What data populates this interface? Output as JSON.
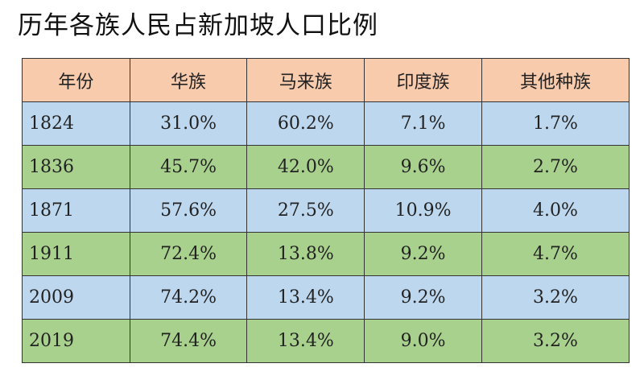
{
  "title": "历年各族人民占新加坡人口比例",
  "colors": {
    "header": "#f8cbad",
    "row_odd": "#bdd7ee",
    "row_even": "#a9d18e"
  },
  "chart_data": {
    "type": "table",
    "title": "历年各族人民占新加坡人口比例",
    "columns": [
      "年份",
      "华族",
      "马来族",
      "印度族",
      "其他种族"
    ],
    "rows": [
      [
        "1824",
        "31.0%",
        "60.2%",
        "7.1%",
        "1.7%"
      ],
      [
        "1836",
        "45.7%",
        "42.0%",
        "9.6%",
        "2.7%"
      ],
      [
        "1871",
        "57.6%",
        "27.5%",
        "10.9%",
        "4.0%"
      ],
      [
        "1911",
        "72.4%",
        "13.8%",
        "9.2%",
        "4.7%"
      ],
      [
        "2009",
        "74.2%",
        "13.4%",
        "9.2%",
        "3.2%"
      ],
      [
        "2019",
        "74.4%",
        "13.4%",
        "9.0%",
        "3.2%"
      ]
    ]
  }
}
